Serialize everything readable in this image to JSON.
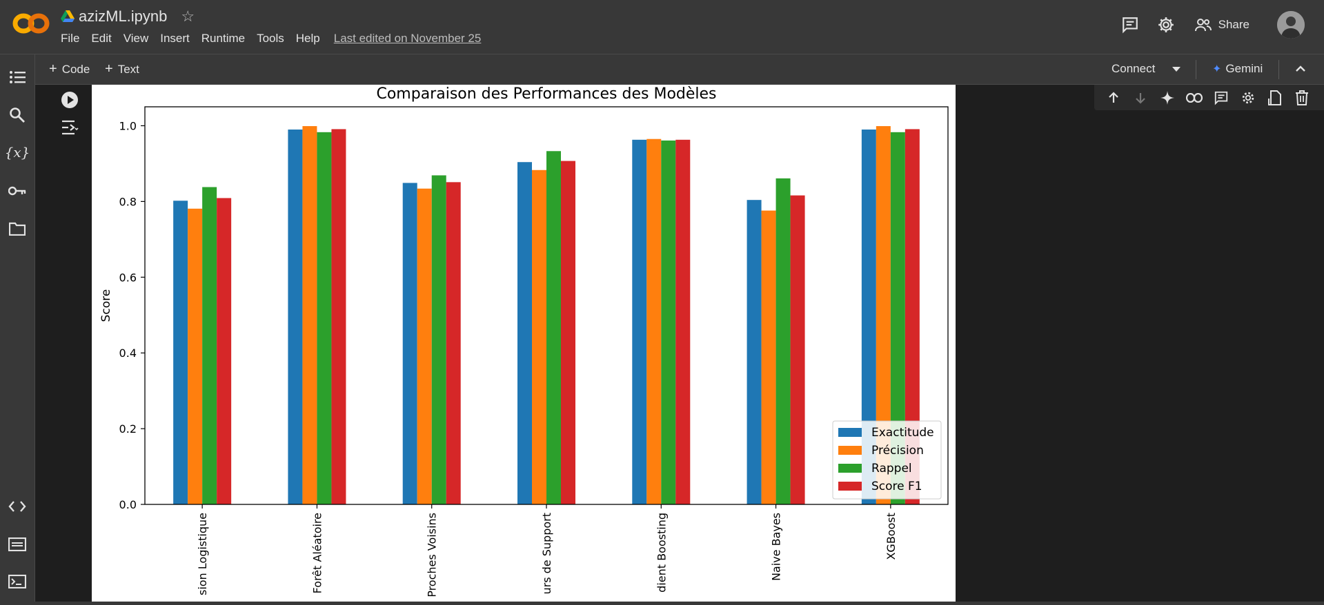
{
  "app": {
    "notebook_title": "azizML.ipynb",
    "menu": [
      "File",
      "Edit",
      "View",
      "Insert",
      "Runtime",
      "Tools",
      "Help"
    ],
    "last_edited": "Last edited on November 25",
    "share_label": "Share"
  },
  "toolbar": {
    "add_code": "Code",
    "add_text": "Text",
    "connect": "Connect",
    "gemini": "Gemini"
  },
  "sidebar": {
    "items": [
      "table-of-contents-icon",
      "search-icon",
      "variables-icon",
      "secrets-key-icon",
      "files-folder-icon",
      "code-snippets-icon",
      "command-palette-icon",
      "terminal-icon"
    ]
  },
  "cell_toolbar": [
    "move-up-icon",
    "move-down-icon",
    "gemini-spark-icon",
    "link-icon",
    "comment-icon",
    "settings-icon",
    "mirror-cell-icon",
    "delete-icon",
    "more-icon"
  ],
  "colors": {
    "exactitude": "#1f77b4",
    "precision": "#ff7f0e",
    "rappel": "#2ca02c",
    "score_f1": "#d62728"
  },
  "chart_data": {
    "type": "bar",
    "title": "Comparaison des Performances des Modèles",
    "xlabel": "",
    "ylabel": "Score",
    "ylim": [
      0,
      1.05
    ],
    "yticks": [
      "0.0",
      "0.2",
      "0.4",
      "0.6",
      "0.8",
      "1.0"
    ],
    "categories": [
      "Régression Logistique",
      "Forêt Aléatoire",
      "K-Plus Proches Voisins",
      "Machine à Vecteurs de Support",
      "Gradient Boosting",
      "Naive Bayes",
      "XGBoost"
    ],
    "category_labels_visible": [
      "sion Logistique",
      "Forêt Aléatoire",
      "Proches Voisins",
      "urs de Support",
      "dient Boosting",
      "Naive Bayes",
      "XGBoost"
    ],
    "series": [
      {
        "name": "Exactitude",
        "values": [
          0.802,
          0.99,
          0.849,
          0.904,
          0.963,
          0.804,
          0.99
        ]
      },
      {
        "name": "Précision",
        "values": [
          0.781,
          0.999,
          0.834,
          0.883,
          0.965,
          0.776,
          0.999
        ]
      },
      {
        "name": "Rappel",
        "values": [
          0.838,
          0.983,
          0.869,
          0.933,
          0.961,
          0.861,
          0.983
        ]
      },
      {
        "name": "Score F1",
        "values": [
          0.809,
          0.991,
          0.851,
          0.907,
          0.963,
          0.816,
          0.991
        ]
      }
    ],
    "legend_position": "lower-right",
    "grid": false
  }
}
